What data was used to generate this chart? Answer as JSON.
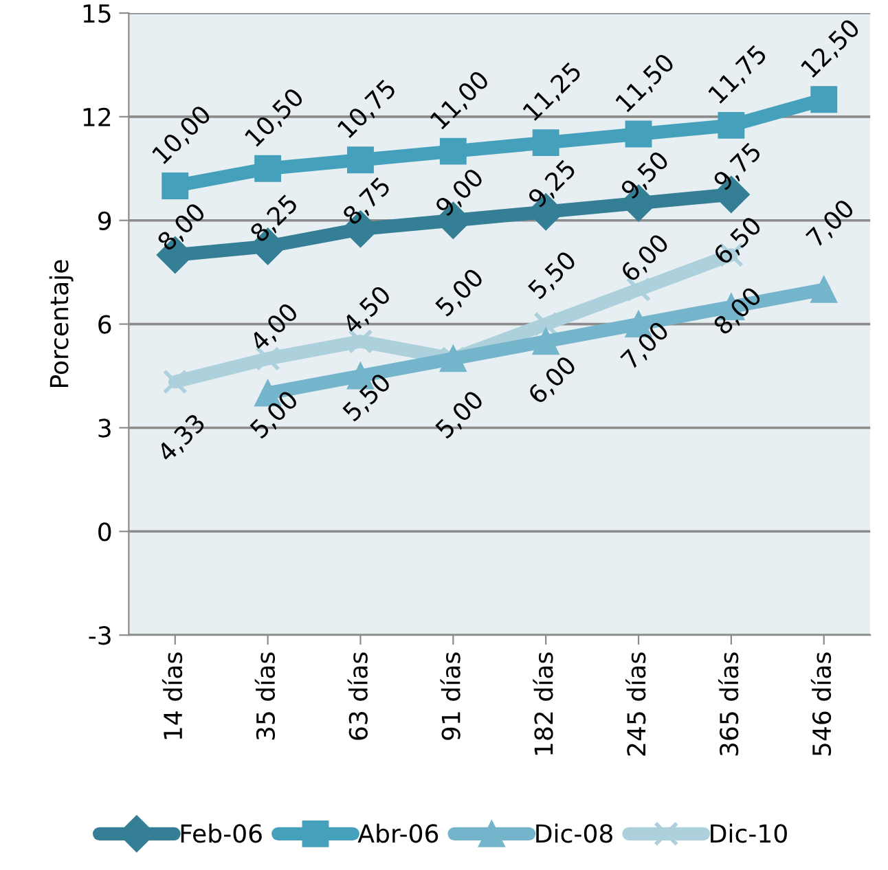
{
  "chart_data": {
    "type": "line",
    "ylabel": "Porcentaje",
    "categories": [
      "14 días",
      "35 días",
      "63 días",
      "91 días",
      "182 días",
      "245 días",
      "365 días",
      "546 días"
    ],
    "series": [
      {
        "name": "Feb-06",
        "color": "#357f96",
        "marker": "diamond",
        "values": [
          8.0,
          8.25,
          8.75,
          9.0,
          9.25,
          9.5,
          9.75,
          null
        ],
        "value_labels": [
          "8,00",
          "8,25",
          "8,75",
          "9,00",
          "9,25",
          "9,50",
          "9,75",
          null
        ]
      },
      {
        "name": "Abr-06",
        "color": "#45a0bb",
        "marker": "square",
        "values": [
          10.0,
          10.5,
          10.75,
          11.0,
          11.25,
          11.5,
          11.75,
          12.5
        ],
        "value_labels": [
          "10,00",
          "10,50",
          "10,75",
          "11,00",
          "11,25",
          "11,50",
          "11,75",
          "12,50"
        ]
      },
      {
        "name": "Dic-08",
        "color": "#74b5cc",
        "marker": "triangle",
        "values": [
          null,
          4.0,
          4.5,
          5.0,
          5.5,
          6.0,
          6.5,
          7.0
        ],
        "value_labels": [
          null,
          "4,00",
          "4,50",
          "5,00",
          "5,50",
          "6,00",
          "6,50",
          "7,00"
        ]
      },
      {
        "name": "Dic-10",
        "color": "#acd0dc",
        "marker": "cross",
        "values": [
          4.33,
          5.0,
          5.5,
          5.0,
          6.0,
          7.0,
          8.0,
          null
        ],
        "value_labels": [
          "4,33",
          "5,00",
          "5,50",
          "5,00",
          "6,00",
          "7,00",
          "8,00",
          null
        ]
      }
    ],
    "ylim": [
      -3,
      15
    ],
    "yticks": [
      -3,
      0,
      3,
      6,
      9,
      12,
      15
    ],
    "grid": "y",
    "legend": "bottom"
  }
}
